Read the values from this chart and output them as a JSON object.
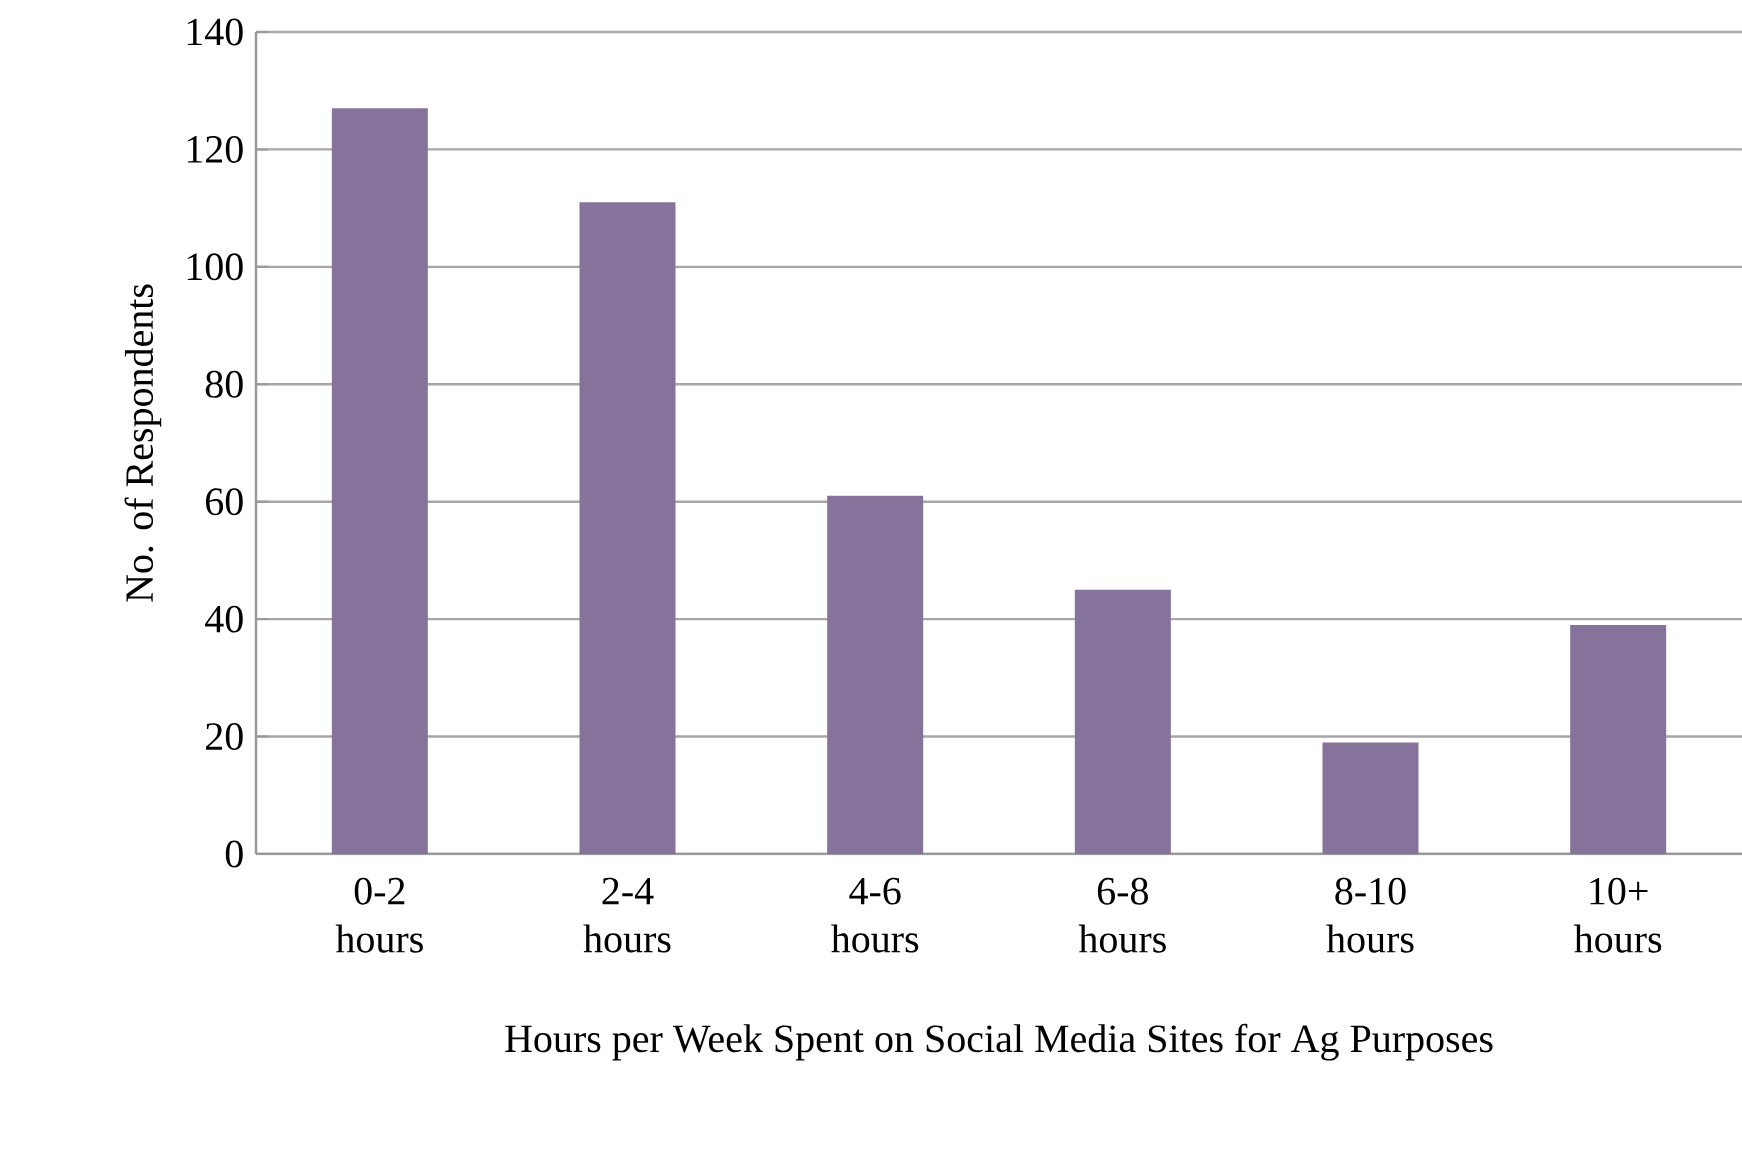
{
  "chart_data": {
    "type": "bar",
    "xlabel": "Hours per Week Spent on Social Media Sites for Ag Purposes",
    "ylabel": "No. of Respondents",
    "categories": [
      "0-2 hours",
      "2-4 hours",
      "4-6 hours",
      "6-8 hours",
      "8-10 hours",
      "10+ hours"
    ],
    "values": [
      127,
      111,
      61,
      45,
      19,
      39
    ],
    "color": "#86739c",
    "ylim": [
      0,
      140
    ],
    "yticks": [
      0,
      20,
      40,
      60,
      80,
      100,
      120,
      140
    ],
    "grid": "y"
  }
}
